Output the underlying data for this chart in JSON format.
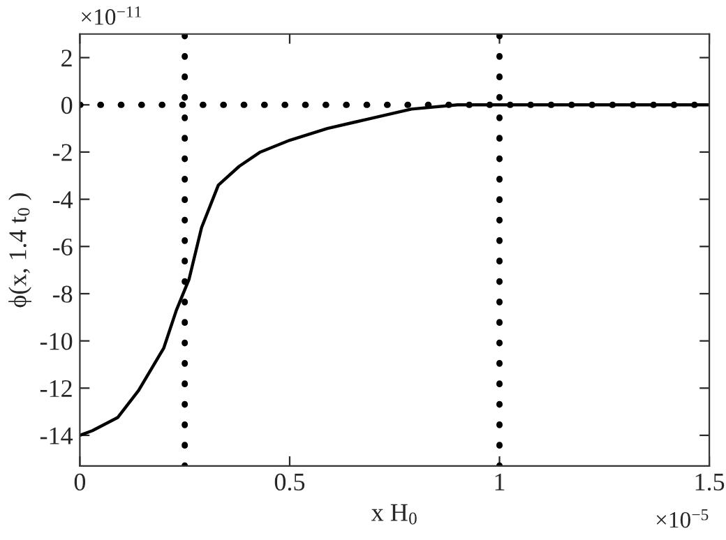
{
  "chart_data": {
    "type": "line",
    "xlabel": "x H$_{0}$",
    "ylabel": "ϕ(x, 1.4 t$_{0}$ )",
    "annotations": [
      "×10$^{−11}$",
      "×10$^{−5}$"
    ],
    "series": [
      {
        "color": "#000000",
        "x": [
          0,
          0.03,
          0.09,
          0.14,
          0.2,
          0.23,
          0.26,
          0.29,
          0.33,
          0.38,
          0.43,
          0.5,
          0.59,
          0.68,
          0.79,
          0.9,
          1.0,
          1.5
        ],
        "values": [
          -14,
          -13.8,
          -13.25,
          -12.1,
          -10.3,
          -8.7,
          -7.4,
          -5.2,
          -3.4,
          -2.6,
          -2.0,
          -1.5,
          -1.0,
          -0.63,
          -0.18,
          0,
          0,
          0
        ]
      }
    ],
    "xlim": [
      0,
      1.5
    ],
    "xticks": [
      0,
      0.5,
      1,
      1.5
    ],
    "ylim": [
      -15.3,
      3
    ],
    "yticks": [
      -14,
      -12,
      -10,
      -8,
      -6,
      -4,
      -2,
      0,
      2
    ],
    "ref_lines": [
      {
        "axis": "x",
        "value": 0.25,
        "color": "#000000",
        "line_style": "dotted"
      },
      {
        "axis": "x",
        "value": 1,
        "color": "#000000",
        "line_style": "dotted"
      },
      {
        "axis": "y",
        "value": 0,
        "color": "#000000",
        "line_style": "dotted"
      }
    ],
    "line_style": "solid",
    "marker": "none",
    "grid": false,
    "legend": false
  }
}
